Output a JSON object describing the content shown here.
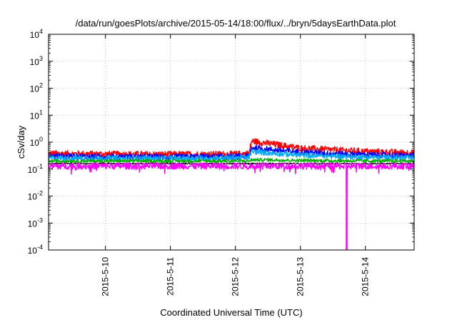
{
  "chart_data": {
    "type": "line",
    "title": "/data/run/goesPlots/archive/2015-05-14/18:00/flux/../bryn/5daysEarthData.plot",
    "xlabel": "Coordinated Universal Time (UTC)",
    "ylabel": "cSv/day",
    "yscale": "log",
    "ylim": [
      0.0001,
      10000
    ],
    "xlim": [
      "2015-05-09 03:00",
      "2015-05-14 18:00"
    ],
    "x_ticks": [
      "2015-5-10",
      "2015-5-11",
      "2015-5-12",
      "2015-5-13",
      "2015-5-14"
    ],
    "y_ticks": [
      {
        "base": "10",
        "exp": "-4",
        "value": 0.0001
      },
      {
        "base": "10",
        "exp": "-3",
        "value": 0.001
      },
      {
        "base": "10",
        "exp": "-2",
        "value": 0.01
      },
      {
        "base": "10",
        "exp": "-1",
        "value": 0.1
      },
      {
        "base": "10",
        "exp": "0",
        "value": 1
      },
      {
        "base": "10",
        "exp": "1",
        "value": 10
      },
      {
        "base": "10",
        "exp": "2",
        "value": 100
      },
      {
        "base": "10",
        "exp": "3",
        "value": 1000
      },
      {
        "base": "10",
        "exp": "4",
        "value": 10000
      }
    ],
    "grid": true,
    "legend": "none",
    "series": [
      {
        "color": "#ff0000",
        "x": [
          "2015-05-09 03:00",
          "2015-05-10 00:00",
          "2015-05-11 00:00",
          "2015-05-12 00:00",
          "2015-05-12 05:00",
          "2015-05-12 06:00",
          "2015-05-12 12:00",
          "2015-05-13 00:00",
          "2015-05-14 00:00",
          "2015-05-14 18:00"
        ],
        "y": [
          0.38,
          0.36,
          0.35,
          0.36,
          0.38,
          1.1,
          0.9,
          0.6,
          0.45,
          0.4
        ]
      },
      {
        "color": "#0000ff",
        "x": [
          "2015-05-09 03:00",
          "2015-05-10 00:00",
          "2015-05-11 00:00",
          "2015-05-12 00:00",
          "2015-05-12 05:00",
          "2015-05-12 06:00",
          "2015-05-12 12:00",
          "2015-05-13 00:00",
          "2015-05-14 00:00",
          "2015-05-14 18:00"
        ],
        "y": [
          0.3,
          0.29,
          0.28,
          0.29,
          0.3,
          0.62,
          0.55,
          0.42,
          0.34,
          0.31
        ]
      },
      {
        "color": "#00a8ff",
        "x": [
          "2015-05-09 03:00",
          "2015-05-10 00:00",
          "2015-05-11 00:00",
          "2015-05-12 00:00",
          "2015-05-12 05:00",
          "2015-05-12 06:00",
          "2015-05-12 12:00",
          "2015-05-13 00:00",
          "2015-05-14 00:00",
          "2015-05-14 18:00"
        ],
        "y": [
          0.26,
          0.25,
          0.25,
          0.26,
          0.27,
          0.45,
          0.4,
          0.33,
          0.28,
          0.26
        ]
      },
      {
        "color": "#00b000",
        "x": [
          "2015-05-09 03:00",
          "2015-05-10 00:00",
          "2015-05-11 00:00",
          "2015-05-12 00:00",
          "2015-05-12 05:00",
          "2015-05-12 06:00",
          "2015-05-12 12:00",
          "2015-05-13 00:00",
          "2015-05-14 00:00",
          "2015-05-14 18:00"
        ],
        "y": [
          0.2,
          0.2,
          0.2,
          0.2,
          0.2,
          0.22,
          0.22,
          0.21,
          0.2,
          0.2
        ]
      },
      {
        "color": "#000000",
        "x": [
          "2015-05-09 03:00",
          "2015-05-10 00:00",
          "2015-05-11 00:00",
          "2015-05-12 00:00",
          "2015-05-13 00:00",
          "2015-05-14 00:00",
          "2015-05-14 18:00"
        ],
        "y": [
          0.16,
          0.16,
          0.16,
          0.16,
          0.16,
          0.16,
          0.16
        ]
      },
      {
        "color": "#ff00ff",
        "x": [
          "2015-05-09 03:00",
          "2015-05-10 00:00",
          "2015-05-11 00:00",
          "2015-05-12 00:00",
          "2015-05-13 00:00",
          "2015-05-13 17:00",
          "2015-05-13 17:05",
          "2015-05-13 17:10",
          "2015-05-14 00:00",
          "2015-05-14 18:00"
        ],
        "y": [
          0.13,
          0.13,
          0.13,
          0.13,
          0.13,
          0.13,
          0.0001,
          0.13,
          0.13,
          0.13
        ]
      }
    ]
  }
}
